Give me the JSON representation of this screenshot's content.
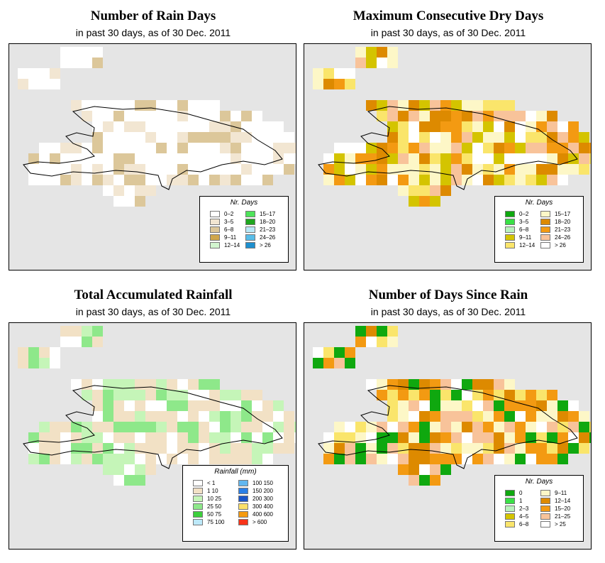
{
  "panels": [
    {
      "title": "Number of Rain Days",
      "subtitle": "in past 30 days, as of  30 Dec. 2011",
      "legend": {
        "title": "Nr. Days",
        "items": [
          {
            "label": "0–2",
            "color": "#ffffff"
          },
          {
            "label": "3–5",
            "color": "#f2e6d2"
          },
          {
            "label": "6–8",
            "color": "#dcc79a"
          },
          {
            "label": "9–11",
            "color": "#cfa64a"
          },
          {
            "label": "12–14",
            "color": "#d2f5cf"
          },
          {
            "label": "15–17",
            "color": "#4ee35a"
          },
          {
            "label": "18–20",
            "color": "#1fa61f"
          },
          {
            "label": "21–23",
            "color": "#b9e8f7"
          },
          {
            "label": "24–26",
            "color": "#58bde8"
          },
          {
            "label": "> 26",
            "color": "#1e8fce"
          }
        ]
      }
    },
    {
      "title": "Maximum Consecutive Dry Days",
      "subtitle": "in past 30 days, as of  30 Dec. 2011",
      "legend": {
        "title": "Nr. Days",
        "items": [
          {
            "label": "0–2",
            "color": "#0fa80f"
          },
          {
            "label": "3–5",
            "color": "#39e046"
          },
          {
            "label": "6–8",
            "color": "#b9f2bd"
          },
          {
            "label": "9–11",
            "color": "#d4c400"
          },
          {
            "label": "12–14",
            "color": "#fae56b"
          },
          {
            "label": "15–17",
            "color": "#fdf7c7"
          },
          {
            "label": "18–20",
            "color": "#dd8a00"
          },
          {
            "label": "21–23",
            "color": "#f39a12"
          },
          {
            "label": "24–26",
            "color": "#f8c39a"
          },
          {
            "label": "> 26",
            "color": "#ffffff"
          }
        ]
      }
    },
    {
      "title": "Total Accumulated Rainfall",
      "subtitle": "in past 30 days, as of  30 Dec. 2011",
      "legend": {
        "title": "Rainfall (mm)",
        "items": [
          {
            "label": "< 1",
            "color": "#ffffff"
          },
          {
            "label": "1    10",
            "color": "#f2e1c5"
          },
          {
            "label": "10    25",
            "color": "#c5f5b8"
          },
          {
            "label": "25    50",
            "color": "#8ee88a"
          },
          {
            "label": "50    75",
            "color": "#3ccf3c"
          },
          {
            "label": "75    100",
            "color": "#bde9f9"
          },
          {
            "label": "100    150",
            "color": "#62b7ef"
          },
          {
            "label": "150    200",
            "color": "#2a7fe6"
          },
          {
            "label": "200    300",
            "color": "#1a55c8"
          },
          {
            "label": "300    400",
            "color": "#fbe06a"
          },
          {
            "label": "400    600",
            "color": "#f59a10"
          },
          {
            "label": "> 600",
            "color": "#f8341a"
          }
        ]
      }
    },
    {
      "title": "Number of Days Since Rain",
      "subtitle": "in past 30 days, as of  30 Dec. 2011",
      "legend": {
        "title": "Nr. Days",
        "items": [
          {
            "label": "0",
            "color": "#0fa80f"
          },
          {
            "label": "1",
            "color": "#39e046"
          },
          {
            "label": "2–3",
            "color": "#b9f2bd"
          },
          {
            "label": "4–5",
            "color": "#d4c400"
          },
          {
            "label": "6–8",
            "color": "#fae56b"
          },
          {
            "label": "9–11",
            "color": "#fdf7c7"
          },
          {
            "label": "12–14",
            "color": "#dd8a00"
          },
          {
            "label": "15–20",
            "color": "#f39a12"
          },
          {
            "label": "21–25",
            "color": "#f8c39a"
          },
          {
            "label": "> 25",
            "color": "#ffffff"
          }
        ]
      }
    }
  ]
}
